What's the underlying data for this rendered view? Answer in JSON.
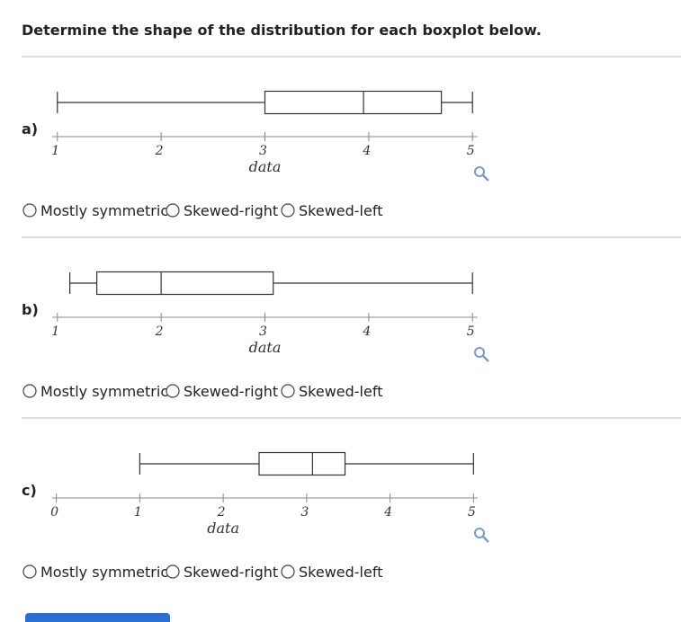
{
  "header": {
    "title": "Determine the shape of the distribution for each boxplot below."
  },
  "problems": [
    {
      "label": "a)",
      "boxplot": {
        "min": 1.0,
        "q1": 3.0,
        "median": 3.95,
        "q3": 4.7,
        "max": 5.0,
        "xlim": [
          0.95,
          5.05
        ],
        "xticks": [
          1,
          2,
          3,
          4,
          5
        ],
        "xlabel": "data"
      },
      "options": [
        "Mostly symmetric",
        "Skewed-right",
        "Skewed-left"
      ]
    },
    {
      "label": "b)",
      "boxplot": {
        "min": 1.12,
        "q1": 1.38,
        "median": 2.0,
        "q3": 3.08,
        "max": 5.0,
        "xlim": [
          0.95,
          5.05
        ],
        "xticks": [
          1,
          2,
          3,
          4,
          5
        ],
        "xlabel": "data"
      },
      "options": [
        "Mostly symmetric",
        "Skewed-right",
        "Skewed-left"
      ]
    },
    {
      "label": "c)",
      "boxplot": {
        "min": 1.0,
        "q1": 2.43,
        "median": 3.07,
        "q3": 3.46,
        "max": 5.0,
        "xlim": [
          -0.05,
          5.05
        ],
        "xticks": [
          0,
          1,
          2,
          3,
          4,
          5
        ],
        "xlabel": "data"
      },
      "options": [
        "Mostly symmetric",
        "Skewed-right",
        "Skewed-left"
      ]
    }
  ]
}
